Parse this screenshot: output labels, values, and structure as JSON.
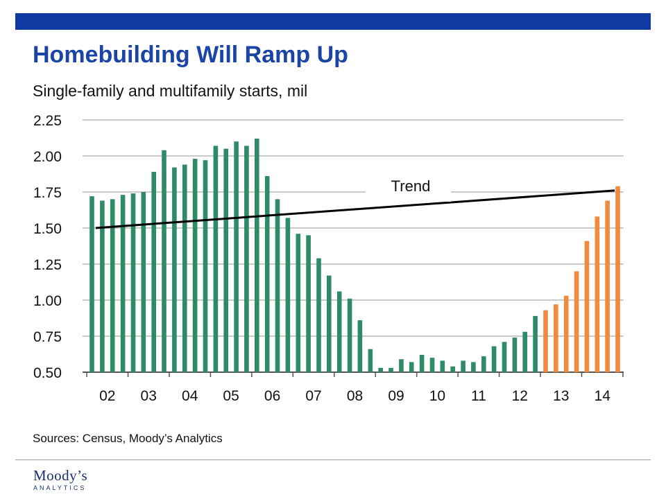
{
  "header": {
    "title": "Homebuilding Will Ramp Up",
    "subtitle": "Single-family and multifamily starts, mil"
  },
  "footer": {
    "sources": "Sources: Census, Moody’s Analytics",
    "logo_main": "Moody’s",
    "logo_sub": "ANALYTICS"
  },
  "colors": {
    "header_bar": "#0e3aa1",
    "title": "#1a44a6",
    "actual": "#2e8b66",
    "forecast": "#f08a3c",
    "trend": "#000000",
    "grid": "#b8b8b8"
  },
  "chart_data": {
    "type": "bar",
    "title": "Single-family and multifamily starts, mil",
    "xlabel": "",
    "ylabel": "",
    "ylim": [
      0.5,
      2.25
    ],
    "yticks": [
      "0.50",
      "0.75",
      "1.00",
      "1.25",
      "1.50",
      "1.75",
      "2.00",
      "2.25"
    ],
    "x_tick_labels": [
      "02",
      "03",
      "04",
      "05",
      "06",
      "07",
      "08",
      "09",
      "10",
      "11",
      "12",
      "13",
      "14"
    ],
    "grid": true,
    "legend": "none",
    "frequency": "quarterly, 2002 Q1 to 2014 Q4",
    "series": [
      {
        "name": "",
        "kind": "actual",
        "values": [
          1.72,
          1.69,
          1.7,
          1.73,
          1.74,
          1.75,
          1.89,
          2.04,
          1.92,
          1.94,
          1.98,
          1.97,
          2.07,
          2.05,
          2.1,
          2.07,
          2.12,
          1.86,
          1.7,
          1.57,
          1.46,
          1.45,
          1.29,
          1.17,
          1.06,
          1.01,
          0.86,
          0.66,
          0.53,
          0.53,
          0.59,
          0.57,
          0.62,
          0.6,
          0.58,
          0.54,
          0.58,
          0.57,
          0.61,
          0.68,
          0.71,
          0.74,
          0.78,
          0.89
        ]
      },
      {
        "name": "",
        "kind": "forecast",
        "values": [
          0.93,
          0.97,
          1.03,
          1.2,
          1.41,
          1.58,
          1.69,
          1.79
        ]
      }
    ],
    "trend": {
      "label": "Trend",
      "start": 1.5,
      "end": 1.76
    }
  }
}
